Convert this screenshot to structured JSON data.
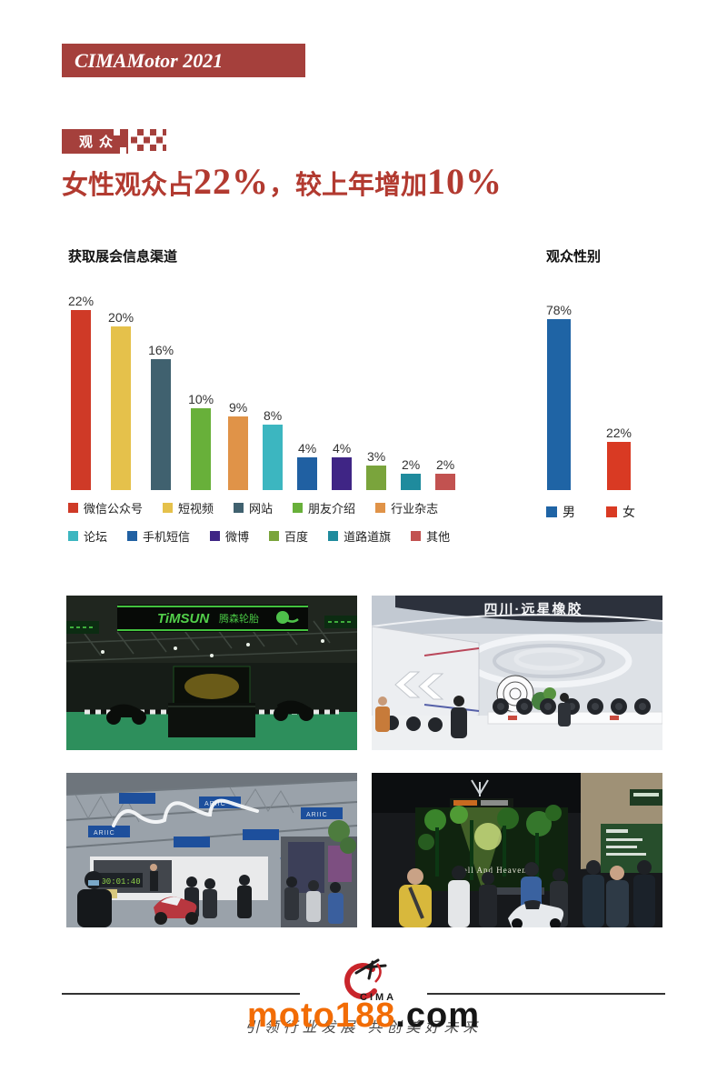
{
  "header": {
    "title": "CIMAMotor 2021"
  },
  "section": {
    "badge": "观众"
  },
  "headline": {
    "text_1": "女性观众占",
    "highlight_1": "22%",
    "text_2": "，较上年增加",
    "highlight_2": "10%"
  },
  "chart_data": [
    {
      "type": "bar",
      "title": "获取展会信息渠道",
      "categories": [
        "微信公众号",
        "短视频",
        "网站",
        "朋友介绍",
        "行业杂志",
        "论坛",
        "手机短信",
        "微博",
        "百度",
        "道路道旗",
        "其他"
      ],
      "values": [
        22,
        20,
        16,
        10,
        9,
        8,
        4,
        4,
        3,
        2,
        2
      ],
      "data_labels": [
        "22%",
        "20%",
        "16%",
        "10%",
        "9%",
        "8%",
        "4%",
        "4%",
        "3%",
        "2%",
        "2%"
      ],
      "colors": [
        "#cf3a27",
        "#e5c14b",
        "#40616f",
        "#68b03a",
        "#e09348",
        "#3cb6c0",
        "#2060a2",
        "#3f2585",
        "#7aa43c",
        "#1f8b9d",
        "#c25250"
      ],
      "unit": "%",
      "ylim": [
        0,
        22
      ],
      "grid": false,
      "axes_visible": false,
      "legend_position": "bottom"
    },
    {
      "type": "bar",
      "title": "观众性别",
      "categories": [
        "男",
        "女"
      ],
      "values": [
        78,
        22
      ],
      "data_labels": [
        "78%",
        "22%"
      ],
      "colors": [
        "#1f64a5",
        "#d93a23"
      ],
      "unit": "%",
      "ylim": [
        0,
        78
      ],
      "grid": false,
      "axes_visible": false,
      "legend_position": "bottom"
    }
  ],
  "photos": [
    {
      "label": "timsun-booth",
      "banner_brand": "TiMSUN",
      "banner_sub": "腾森轮胎"
    },
    {
      "label": "yuanxing-booth",
      "banner": "四川·远星橡胶"
    },
    {
      "label": "ariic-booth",
      "sign": "ARIIC",
      "countdown": "00:01:40"
    },
    {
      "label": "crowd-booth",
      "screen_text": "Hell And Heaven"
    }
  ],
  "footer": {
    "logo_text": "CIMA",
    "slogan": "引领行业发展 共创美好未来",
    "watermark_orange": "moto188",
    "watermark_black": ".com"
  },
  "colors": {
    "brand_red": "#a5403c",
    "headline_red": "#b23a30",
    "watermark_orange": "#f26c05",
    "male_blue": "#1f64a5",
    "female_red": "#d93a23"
  }
}
